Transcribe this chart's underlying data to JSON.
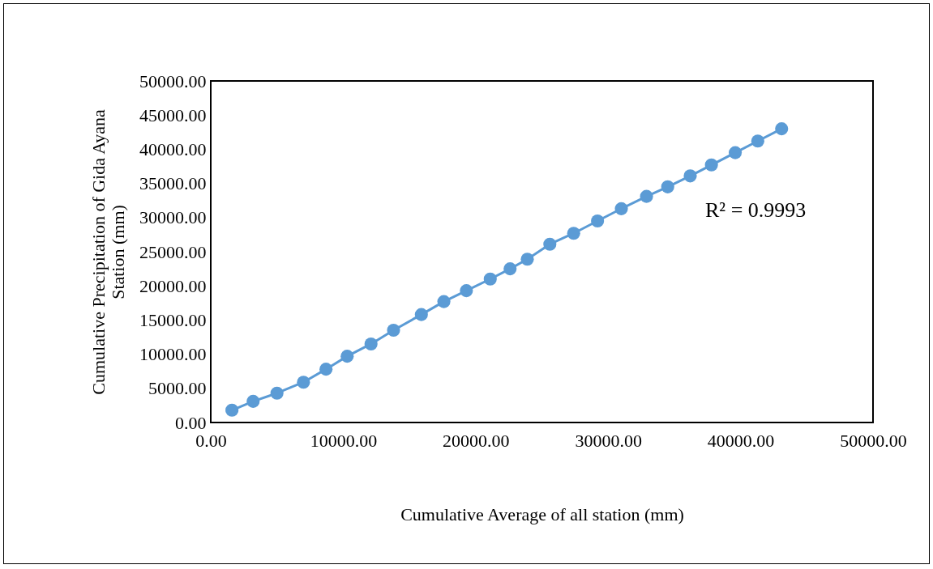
{
  "chart_data": {
    "type": "line",
    "xlabel": "Cumulative Average of all station (mm)",
    "ylabel": "Cumulative Precipitation  of Gida Ayana\nStation (mm)",
    "x": [
      1600,
      3200,
      5000,
      7000,
      8700,
      10300,
      12100,
      13800,
      15900,
      17600,
      19300,
      21100,
      22600,
      23900,
      25600,
      27400,
      29200,
      31000,
      32900,
      34500,
      36200,
      37800,
      39600,
      41300,
      43100
    ],
    "series": [
      {
        "color": "#5b9bd5",
        "values": [
          1800,
          3100,
          4300,
          5900,
          7800,
          9700,
          11500,
          13500,
          15800,
          17700,
          19300,
          21000,
          22500,
          23900,
          26100,
          27700,
          29500,
          31300,
          33100,
          34500,
          36100,
          37700,
          39500,
          41200,
          43000
        ]
      }
    ],
    "marker": "circle",
    "grid": false,
    "legend": false,
    "xlim": [
      0,
      50000
    ],
    "xticks": [
      {
        "value": 0,
        "label": "0.00"
      },
      {
        "value": 10000,
        "label": "10000.00"
      },
      {
        "value": 20000,
        "label": "20000.00"
      },
      {
        "value": 30000,
        "label": "30000.00"
      },
      {
        "value": 40000,
        "label": "40000.00"
      },
      {
        "value": 50000,
        "label": "50000.00"
      }
    ],
    "ylim": [
      0,
      50000
    ],
    "yticks": [
      {
        "value": 0,
        "label": "0.00"
      },
      {
        "value": 5000,
        "label": "5000.00"
      },
      {
        "value": 10000,
        "label": "10000.00"
      },
      {
        "value": 15000,
        "label": "15000.00"
      },
      {
        "value": 20000,
        "label": "20000.00"
      },
      {
        "value": 25000,
        "label": "25000.00"
      },
      {
        "value": 30000,
        "label": "30000.00"
      },
      {
        "value": 35000,
        "label": "35000.00"
      },
      {
        "value": 40000,
        "label": "40000.00"
      },
      {
        "value": 45000,
        "label": "45000.00"
      },
      {
        "value": 50000,
        "label": "50000.00"
      }
    ],
    "annotations": [
      "R² = 0.9993"
    ]
  }
}
